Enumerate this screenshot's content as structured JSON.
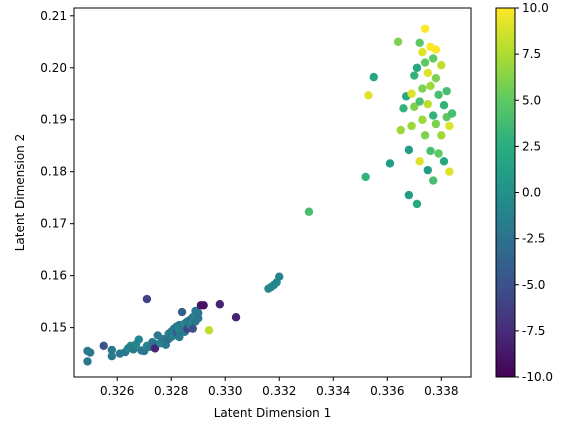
{
  "chart_data": {
    "type": "scatter",
    "title": "",
    "xlabel": "Latent Dimension 1",
    "ylabel": "Latent Dimension 2",
    "xlim": [
      0.3244,
      0.3391
    ],
    "ylim": [
      0.1405,
      0.2115
    ],
    "xticks": [
      "0.326",
      "0.328",
      "0.330",
      "0.332",
      "0.334",
      "0.336",
      "0.338"
    ],
    "yticks": [
      "0.15",
      "0.16",
      "0.17",
      "0.18",
      "0.19",
      "0.20",
      "0.21"
    ],
    "colorbar": {
      "colormap": "viridis",
      "range": [
        -10,
        10
      ],
      "ticks": [
        "-10.0",
        "-7.5",
        "-5.0",
        "-2.5",
        "0.0",
        "2.5",
        "5.0",
        "7.5",
        "10.0"
      ]
    },
    "grid": false,
    "points": [
      [
        0.3249,
        0.1455,
        -2
      ],
      [
        0.325,
        0.1452,
        -2
      ],
      [
        0.3249,
        0.1435,
        -2
      ],
      [
        0.3255,
        0.1465,
        -5
      ],
      [
        0.3258,
        0.1457,
        -2
      ],
      [
        0.3258,
        0.1445,
        -2
      ],
      [
        0.3261,
        0.145,
        -2
      ],
      [
        0.3263,
        0.1453,
        -2
      ],
      [
        0.3264,
        0.146,
        -1
      ],
      [
        0.3265,
        0.1465,
        -1
      ],
      [
        0.3266,
        0.1458,
        -2
      ],
      [
        0.3267,
        0.1468,
        -1
      ],
      [
        0.3268,
        0.1477,
        -1
      ],
      [
        0.3269,
        0.1456,
        -2
      ],
      [
        0.327,
        0.1455,
        -2
      ],
      [
        0.3271,
        0.1555,
        -6
      ],
      [
        0.3271,
        0.1465,
        -1
      ],
      [
        0.3272,
        0.1463,
        -2
      ],
      [
        0.3273,
        0.1472,
        -2
      ],
      [
        0.3274,
        0.1468,
        -3
      ],
      [
        0.3274,
        0.146,
        -8
      ],
      [
        0.3275,
        0.1485,
        -2
      ],
      [
        0.3276,
        0.147,
        -1
      ],
      [
        0.3277,
        0.1478,
        -2
      ],
      [
        0.3278,
        0.1467,
        -2
      ],
      [
        0.3279,
        0.1488,
        -1
      ],
      [
        0.3279,
        0.1478,
        -3
      ],
      [
        0.328,
        0.1492,
        -2
      ],
      [
        0.328,
        0.1482,
        -2
      ],
      [
        0.3281,
        0.1498,
        -2
      ],
      [
        0.3281,
        0.1485,
        -1
      ],
      [
        0.3282,
        0.1502,
        -2
      ],
      [
        0.3282,
        0.149,
        -4
      ],
      [
        0.3283,
        0.1505,
        -2
      ],
      [
        0.3283,
        0.1495,
        -1
      ],
      [
        0.3283,
        0.1482,
        -2
      ],
      [
        0.3284,
        0.153,
        -4
      ],
      [
        0.3284,
        0.15,
        -2
      ],
      [
        0.3285,
        0.1508,
        -1
      ],
      [
        0.3285,
        0.1492,
        -2
      ],
      [
        0.3286,
        0.1512,
        -2
      ],
      [
        0.3286,
        0.1498,
        -6
      ],
      [
        0.3287,
        0.1515,
        -3
      ],
      [
        0.3287,
        0.1505,
        -2
      ],
      [
        0.3288,
        0.152,
        -2
      ],
      [
        0.3288,
        0.151,
        -1
      ],
      [
        0.3288,
        0.1498,
        -5
      ],
      [
        0.3289,
        0.1525,
        -1
      ],
      [
        0.3289,
        0.1512,
        -2
      ],
      [
        0.3289,
        0.1532,
        -2
      ],
      [
        0.329,
        0.1528,
        -2
      ],
      [
        0.329,
        0.1518,
        -2
      ],
      [
        0.3291,
        0.1543,
        -9
      ],
      [
        0.3292,
        0.1543,
        -9
      ],
      [
        0.3294,
        0.1495,
        8
      ],
      [
        0.3298,
        0.1545,
        -8
      ],
      [
        0.3304,
        0.152,
        -8
      ],
      [
        0.3316,
        0.1575,
        -1
      ],
      [
        0.3317,
        0.1578,
        -1
      ],
      [
        0.3318,
        0.1582,
        -1
      ],
      [
        0.3319,
        0.1587,
        -1
      ],
      [
        0.332,
        0.1598,
        -1
      ],
      [
        0.3331,
        0.1723,
        4
      ],
      [
        0.3352,
        0.179,
        3
      ],
      [
        0.3353,
        0.1947,
        9
      ],
      [
        0.3355,
        0.1982,
        2
      ],
      [
        0.3361,
        0.1816,
        1
      ],
      [
        0.3364,
        0.205,
        6
      ],
      [
        0.3365,
        0.188,
        7
      ],
      [
        0.3366,
        0.1922,
        3
      ],
      [
        0.3367,
        0.1945,
        2
      ],
      [
        0.3368,
        0.1842,
        1
      ],
      [
        0.3368,
        0.1755,
        1
      ],
      [
        0.3369,
        0.195,
        9
      ],
      [
        0.3369,
        0.1888,
        7
      ],
      [
        0.337,
        0.1985,
        3
      ],
      [
        0.337,
        0.1925,
        6
      ],
      [
        0.3371,
        0.2,
        2
      ],
      [
        0.3371,
        0.1738,
        2
      ],
      [
        0.3372,
        0.2048,
        5
      ],
      [
        0.3372,
        0.1935,
        4
      ],
      [
        0.3372,
        0.182,
        9
      ],
      [
        0.3373,
        0.203,
        9
      ],
      [
        0.3373,
        0.196,
        6
      ],
      [
        0.3373,
        0.19,
        7
      ],
      [
        0.3374,
        0.2075,
        10
      ],
      [
        0.3374,
        0.201,
        5
      ],
      [
        0.3374,
        0.187,
        6
      ],
      [
        0.3375,
        0.199,
        9
      ],
      [
        0.3375,
        0.193,
        8
      ],
      [
        0.3375,
        0.1803,
        1
      ],
      [
        0.3376,
        0.204,
        10
      ],
      [
        0.3376,
        0.1965,
        7
      ],
      [
        0.3376,
        0.184,
        4
      ],
      [
        0.3377,
        0.2018,
        5
      ],
      [
        0.3377,
        0.1908,
        3
      ],
      [
        0.3377,
        0.1783,
        4
      ],
      [
        0.3378,
        0.2035,
        10
      ],
      [
        0.3378,
        0.198,
        6
      ],
      [
        0.3378,
        0.1892,
        6
      ],
      [
        0.3379,
        0.1948,
        4
      ],
      [
        0.3379,
        0.1835,
        5
      ],
      [
        0.338,
        0.2005,
        8
      ],
      [
        0.338,
        0.187,
        7
      ],
      [
        0.3381,
        0.1928,
        3
      ],
      [
        0.3381,
        0.182,
        2
      ],
      [
        0.3382,
        0.1955,
        4
      ],
      [
        0.3382,
        0.1905,
        5
      ],
      [
        0.3383,
        0.18,
        9
      ],
      [
        0.3383,
        0.1888,
        9
      ],
      [
        0.3384,
        0.1912,
        4
      ]
    ]
  }
}
